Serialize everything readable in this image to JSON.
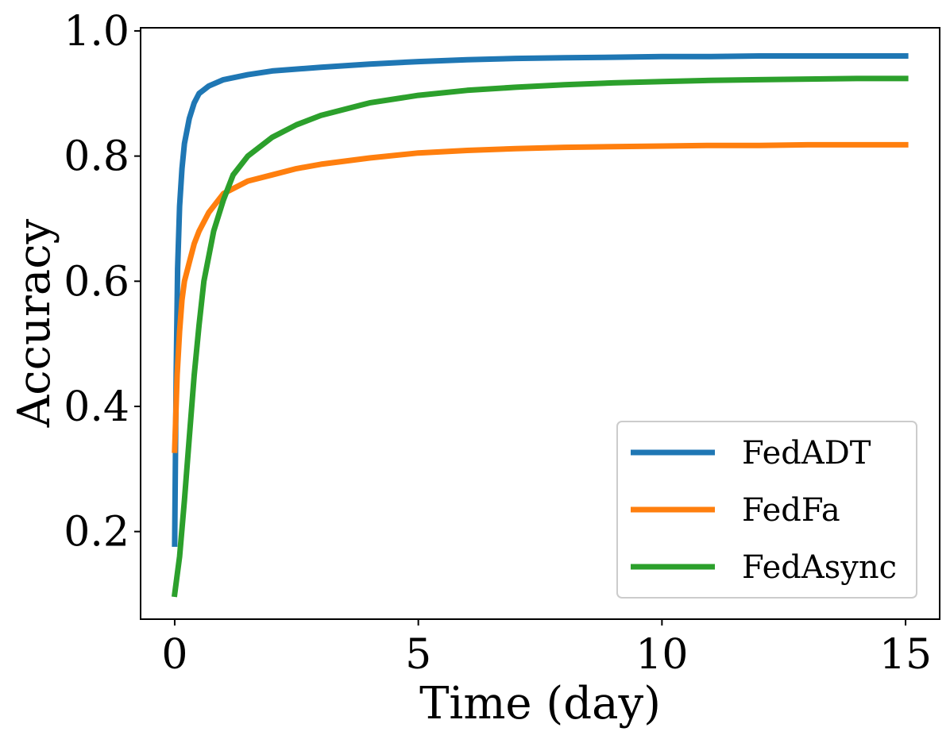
{
  "chart_data": {
    "type": "line",
    "title": "",
    "xlabel": "Time (day)",
    "ylabel": "Accuracy",
    "xlim": [
      -0.7,
      15.7
    ],
    "ylim": [
      0.06,
      1.005
    ],
    "xticks": [
      0,
      5,
      10,
      15
    ],
    "xtick_labels": [
      "0",
      "5",
      "10",
      "15"
    ],
    "yticks": [
      0.2,
      0.4,
      0.6,
      0.8,
      1.0
    ],
    "ytick_labels": [
      "0.2",
      "0.4",
      "0.6",
      "0.8",
      "1.0"
    ],
    "grid": false,
    "legend_position": "lower-right",
    "series": [
      {
        "name": "FedADT",
        "color": "#1f77b4",
        "x": [
          0,
          0.03,
          0.06,
          0.1,
          0.15,
          0.2,
          0.3,
          0.4,
          0.5,
          0.7,
          1.0,
          1.5,
          2.0,
          3.0,
          4.0,
          5.0,
          6.0,
          7.0,
          8.0,
          9.0,
          10.0,
          11.0,
          12.0,
          13.0,
          14.0,
          15.0
        ],
        "y": [
          0.18,
          0.45,
          0.62,
          0.72,
          0.78,
          0.82,
          0.86,
          0.885,
          0.9,
          0.912,
          0.922,
          0.93,
          0.936,
          0.942,
          0.947,
          0.951,
          0.954,
          0.956,
          0.957,
          0.958,
          0.959,
          0.959,
          0.96,
          0.96,
          0.96,
          0.96
        ]
      },
      {
        "name": "FedFa",
        "color": "#ff7f0e",
        "x": [
          0,
          0.05,
          0.1,
          0.15,
          0.2,
          0.3,
          0.4,
          0.5,
          0.7,
          1.0,
          1.5,
          2.0,
          2.5,
          3.0,
          4.0,
          5.0,
          6.0,
          7.0,
          8.0,
          9.0,
          10.0,
          11.0,
          12.0,
          13.0,
          14.0,
          15.0
        ],
        "y": [
          0.33,
          0.45,
          0.52,
          0.57,
          0.6,
          0.63,
          0.66,
          0.68,
          0.71,
          0.74,
          0.76,
          0.77,
          0.78,
          0.787,
          0.797,
          0.805,
          0.809,
          0.812,
          0.814,
          0.815,
          0.816,
          0.817,
          0.817,
          0.818,
          0.818,
          0.818
        ]
      },
      {
        "name": "FedAsync",
        "color": "#2ca02c",
        "x": [
          0,
          0.05,
          0.1,
          0.2,
          0.3,
          0.4,
          0.5,
          0.6,
          0.8,
          1.0,
          1.2,
          1.5,
          2.0,
          2.5,
          3.0,
          4.0,
          5.0,
          6.0,
          7.0,
          8.0,
          9.0,
          10.0,
          11.0,
          12.0,
          13.0,
          14.0,
          15.0
        ],
        "y": [
          0.1,
          0.13,
          0.16,
          0.25,
          0.35,
          0.45,
          0.53,
          0.6,
          0.68,
          0.73,
          0.77,
          0.8,
          0.83,
          0.85,
          0.865,
          0.885,
          0.897,
          0.905,
          0.91,
          0.914,
          0.917,
          0.919,
          0.921,
          0.922,
          0.923,
          0.924,
          0.924
        ]
      }
    ]
  }
}
